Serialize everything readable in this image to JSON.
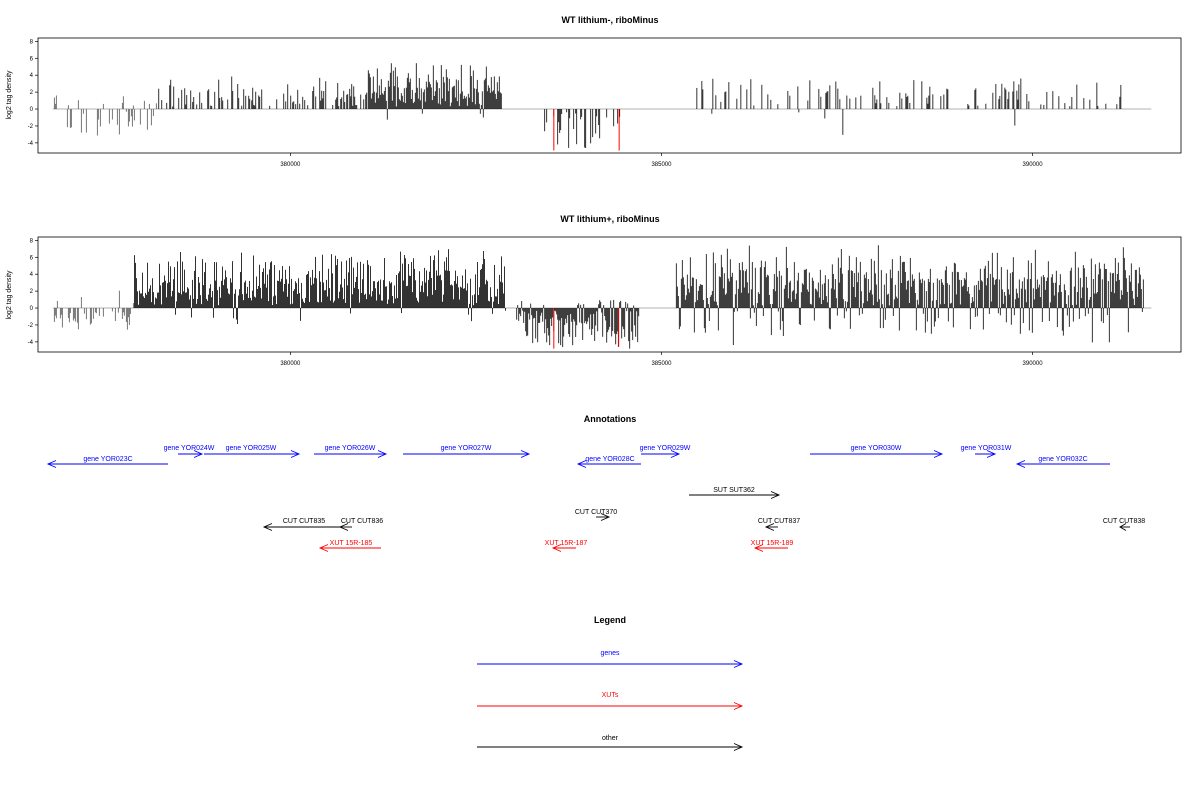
{
  "colors": {
    "gene": "#0000ff",
    "xut": "#ff0000",
    "other": "#000000",
    "baseline": "#999999",
    "bar": "#000000",
    "bar_highlight": "#ff0000"
  },
  "chart_data": [
    {
      "type": "bar",
      "title": "WT lithium-, riboMinus",
      "ylabel": "log2 tag density",
      "xlim": [
        376600,
        392000
      ],
      "ylim": [
        -5.2,
        8.4
      ],
      "x_ticks": [
        380000,
        385000,
        390000
      ],
      "y_ticks": [
        -4,
        -2,
        0,
        2,
        4,
        6,
        8
      ],
      "baseline": [
        376800,
        391600
      ],
      "seed": 7,
      "segments": [
        {
          "x0": 376820,
          "x1": 378200,
          "density": 0.25,
          "min": -3.6,
          "max": 1.8,
          "neg_bias": 0.85,
          "style": "gray"
        },
        {
          "x0": 378200,
          "x1": 381050,
          "density": 0.45,
          "min": -0.5,
          "max": 4.0,
          "neg_bias": 0.0
        },
        {
          "x0": 381050,
          "x1": 382850,
          "density": 1.0,
          "min": -1.5,
          "max": 5.8,
          "neg_bias": 0.03
        },
        {
          "x0": 383400,
          "x1": 384450,
          "density": 0.35,
          "min": -5.0,
          "max": 0.0,
          "neg_bias": 1.0
        },
        {
          "x0": 385450,
          "x1": 391200,
          "density": 0.22,
          "min": -4.2,
          "max": 4.0,
          "neg_bias": 0.08
        }
      ],
      "highlight": [
        {
          "x": 383550,
          "y": -4.9
        },
        {
          "x": 384430,
          "y": -4.9
        }
      ]
    },
    {
      "type": "bar",
      "title": "WT lithium+, riboMinus",
      "ylabel": "log2 tag density",
      "xlim": [
        376600,
        392000
      ],
      "ylim": [
        -5.2,
        8.4
      ],
      "x_ticks": [
        380000,
        385000,
        390000
      ],
      "y_ticks": [
        -4,
        -2,
        0,
        2,
        4,
        6,
        8
      ],
      "baseline": [
        376800,
        391600
      ],
      "seed": 19,
      "segments": [
        {
          "x0": 376820,
          "x1": 377900,
          "density": 0.4,
          "min": -2.6,
          "max": 2.4,
          "neg_bias": 0.9,
          "style": "gray"
        },
        {
          "x0": 377900,
          "x1": 382900,
          "density": 1.3,
          "min": -2.0,
          "max": 7.2,
          "neg_bias": 0.05
        },
        {
          "x0": 383050,
          "x1": 384700,
          "density": 1.1,
          "min": -4.8,
          "max": 1.2,
          "neg_bias": 0.85
        },
        {
          "x0": 385200,
          "x1": 391500,
          "density": 1.3,
          "min": -4.6,
          "max": 7.6,
          "neg_bias": 0.15
        }
      ],
      "highlight": [
        {
          "x": 383550,
          "y": -4.8
        },
        {
          "x": 384420,
          "y": -4.6
        }
      ]
    }
  ],
  "annotations": {
    "title": "Annotations",
    "features": [
      {
        "label": "gene YOR023C",
        "kind": "gene",
        "dir": "left"
      },
      {
        "label": "gene YOR024W",
        "kind": "gene",
        "dir": "right"
      },
      {
        "label": "gene YOR025W",
        "kind": "gene",
        "dir": "right"
      },
      {
        "label": "gene YOR026W",
        "kind": "gene",
        "dir": "right"
      },
      {
        "label": "gene YOR027W",
        "kind": "gene",
        "dir": "right"
      },
      {
        "label": "gene YOR028C",
        "kind": "gene",
        "dir": "left"
      },
      {
        "label": "gene YOR029W",
        "kind": "gene",
        "dir": "right"
      },
      {
        "label": "gene YOR030W",
        "kind": "gene",
        "dir": "right"
      },
      {
        "label": "gene YOR031W",
        "kind": "gene",
        "dir": "right"
      },
      {
        "label": "gene YOR032C",
        "kind": "gene",
        "dir": "left"
      },
      {
        "label": "SUT SUT362",
        "kind": "other",
        "dir": "right"
      },
      {
        "label": "CUT CUT370",
        "kind": "other",
        "dir": "right"
      },
      {
        "label": "CUT CUT835",
        "kind": "other",
        "dir": "left"
      },
      {
        "label": "CUT CUT836",
        "kind": "other",
        "dir": "left"
      },
      {
        "label": "CUT CUT837",
        "kind": "other",
        "dir": "left"
      },
      {
        "label": "CUT CUT838",
        "kind": "other",
        "dir": "left"
      },
      {
        "label": "XUT 15R-185",
        "kind": "xut",
        "dir": "left"
      },
      {
        "label": "XUT 15R-187",
        "kind": "xut",
        "dir": "left"
      },
      {
        "label": "XUT 15R-189",
        "kind": "xut",
        "dir": "left"
      }
    ]
  },
  "legend": {
    "title": "Legend",
    "items": [
      {
        "label": "genes",
        "kind": "gene"
      },
      {
        "label": "XUTs",
        "kind": "xut"
      },
      {
        "label": "other",
        "kind": "other"
      }
    ]
  }
}
